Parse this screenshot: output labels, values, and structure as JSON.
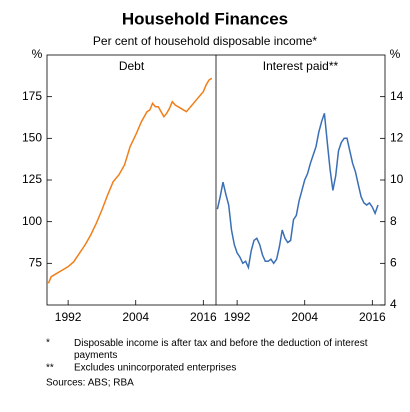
{
  "title": "Household Finances",
  "subtitle": "Per cent of household disposable income*",
  "footnotes": [
    {
      "mark": "*",
      "text": "Disposable income is after tax and before the deduction of interest payments"
    },
    {
      "mark": "**",
      "text": "Excludes unincorporated enterprises"
    }
  ],
  "sources": "Sources:   ABS; RBA",
  "chart_data": [
    {
      "type": "line",
      "panel_title": "Debt",
      "y_label": "%",
      "axis_side": "left",
      "xlim": [
        1988.25,
        2018.25
      ],
      "xticks": [
        1992,
        2004,
        2016
      ],
      "ylim": [
        50,
        200
      ],
      "yticks": [
        75,
        100,
        125,
        150,
        175
      ],
      "x": [
        1988.5,
        1989,
        1990,
        1991,
        1992,
        1993,
        1994,
        1995,
        1996,
        1997,
        1998,
        1999,
        2000,
        2001,
        2002,
        2003,
        2004,
        2005,
        2006,
        2006.5,
        2007,
        2007.5,
        2008,
        2008.5,
        2009,
        2009.5,
        2010,
        2010.5,
        2011,
        2012,
        2013,
        2014,
        2015,
        2016,
        2016.5,
        2017,
        2017.5
      ],
      "series": [
        {
          "name": "Debt",
          "color": "#f07f19",
          "values": [
            63,
            67,
            69,
            71,
            73,
            76,
            81,
            86,
            92,
            99,
            107,
            116,
            124,
            128,
            134,
            145,
            152,
            160,
            166,
            167,
            171,
            169,
            169,
            166,
            163,
            165,
            168,
            172,
            170,
            168,
            166,
            170,
            174,
            178,
            182,
            185,
            186
          ]
        }
      ]
    },
    {
      "type": "line",
      "panel_title": "Interest paid**",
      "y_label": "%",
      "axis_side": "right",
      "xlim": [
        1988.25,
        2018.25
      ],
      "xticks": [
        1992,
        2004,
        2016
      ],
      "ylim": [
        4,
        16
      ],
      "yticks": [
        4,
        6,
        8,
        10,
        12,
        14
      ],
      "x": [
        1988.5,
        1989,
        1989.5,
        1990,
        1990.5,
        1991,
        1991.5,
        1992,
        1992.5,
        1993,
        1993.5,
        1994,
        1994.5,
        1995,
        1995.5,
        1996,
        1996.5,
        1997,
        1997.5,
        1998,
        1998.5,
        1999,
        1999.5,
        2000,
        2000.5,
        2001,
        2001.5,
        2002,
        2002.5,
        2003,
        2003.5,
        2004,
        2004.5,
        2005,
        2005.5,
        2006,
        2006.5,
        2007,
        2007.5,
        2008,
        2008.5,
        2009,
        2009.5,
        2010,
        2010.5,
        2011,
        2011.5,
        2012,
        2012.5,
        2013,
        2013.5,
        2014,
        2014.5,
        2015,
        2015.5,
        2016,
        2016.5,
        2017
      ],
      "series": [
        {
          "name": "Interest paid**",
          "color": "#3a6fb5",
          "values": [
            8.6,
            9.2,
            9.9,
            9.3,
            8.8,
            7.6,
            6.9,
            6.5,
            6.3,
            6.0,
            6.1,
            5.8,
            6.6,
            7.1,
            7.2,
            6.9,
            6.4,
            6.1,
            6.1,
            6.2,
            6.0,
            6.2,
            6.8,
            7.6,
            7.2,
            7.0,
            7.1,
            8.1,
            8.3,
            9.0,
            9.5,
            10.0,
            10.3,
            10.8,
            11.2,
            11.6,
            12.3,
            12.8,
            13.2,
            11.8,
            10.5,
            9.5,
            10.2,
            11.4,
            11.8,
            12.0,
            12.0,
            11.4,
            10.8,
            10.4,
            9.8,
            9.2,
            8.9,
            8.8,
            8.9,
            8.7,
            8.4,
            8.8
          ]
        }
      ]
    }
  ]
}
